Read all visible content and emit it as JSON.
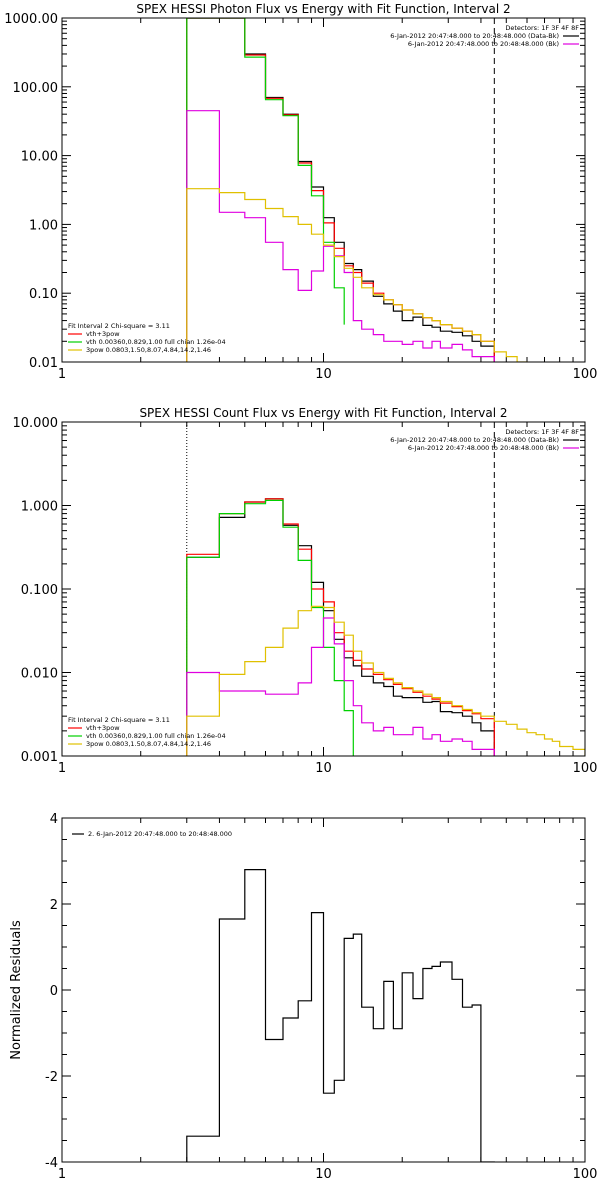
{
  "chart_data": [
    {
      "type": "line",
      "step": true,
      "x_scale": "log",
      "y_scale": "log",
      "title": "SPEX HESSI Photon Flux vs Energy with Fit Function, Interval 2",
      "xlabel": "",
      "ylabel": "",
      "xlim": [
        1,
        100
      ],
      "ylim": [
        0.01,
        1000
      ],
      "x_ticks": [
        1,
        10,
        100
      ],
      "x_tick_labels": [
        "1",
        "10",
        "100"
      ],
      "y_ticks": [
        0.01,
        0.1,
        1,
        10,
        100,
        1000
      ],
      "y_tick_labels": [
        "0.01",
        "0.10",
        "1.00",
        "10.00",
        "100.00",
        "1000.00"
      ],
      "vlines": [
        {
          "x": 3.0,
          "style": "dotted",
          "color": "#ffa500"
        },
        {
          "x": 45,
          "style": "dashed",
          "color": "#000000"
        }
      ],
      "legend_top_right": [
        {
          "text": "Detectors: 1F 3F 4F 8F",
          "line": false,
          "color": "#000000"
        },
        {
          "text": "6-Jan-2012 20:47:48.000 to 20:48:48.000 (Data-Bk)",
          "line": true,
          "color": "#000000"
        },
        {
          "text": "6-Jan-2012 20:47:48.000 to 20:48:48.000 (Bk)",
          "line": true,
          "color": "#e000e0"
        }
      ],
      "legend_bottom_left": [
        {
          "text": "Fit Interval 2   Chi-square = 3.11",
          "line": false,
          "color": "#000000"
        },
        {
          "text": "vth+3pow",
          "line": true,
          "color": "#ff0000"
        },
        {
          "text": "vth 0.00360,0.829,1.00  full chian 1.26e-04",
          "line": true,
          "color": "#00d000"
        },
        {
          "text": "3pow 0.0803,1.50,8.07,4.84,14.2,1.46",
          "line": true,
          "color": "#e0c000"
        }
      ],
      "series": [
        {
          "color": "#000000",
          "edges": [
            3.0,
            4.0,
            5.0,
            6.0,
            7.0,
            8.0,
            9.0,
            10.0,
            11.0,
            12.0,
            13.0,
            14.0,
            15.5,
            17.0,
            18.5,
            20.0,
            22.0,
            24.0,
            26.0,
            28.0,
            31.0,
            34.0,
            37.0,
            40.0,
            45.0
          ],
          "values": [
            1000,
            1000,
            300,
            70,
            40,
            8.2,
            3.5,
            1.25,
            0.55,
            0.27,
            0.22,
            0.15,
            0.09,
            0.07,
            0.055,
            0.04,
            0.045,
            0.034,
            0.032,
            0.028,
            0.027,
            0.024,
            0.02,
            0.017
          ]
        },
        {
          "color": "#ff0000",
          "edges": [
            3.0,
            4.0,
            5.0,
            6.0,
            7.0,
            8.0,
            9.0,
            10.0,
            11.0,
            12.0,
            13.0,
            14.0,
            15.5,
            17.0,
            18.5,
            20.0,
            22.0,
            24.0,
            26.0,
            28.0,
            31.0,
            34.0,
            37.0,
            40.0,
            45.0
          ],
          "values": [
            1000,
            1000,
            290,
            68,
            39,
            7.8,
            3.1,
            1.05,
            0.45,
            0.25,
            0.2,
            0.14,
            0.1,
            0.08,
            0.068,
            0.057,
            0.05,
            0.044,
            0.04,
            0.035,
            0.031,
            0.028,
            0.025,
            0.02
          ]
        },
        {
          "color": "#00d000",
          "edges": [
            3.0,
            4.0,
            5.0,
            6.0,
            7.0,
            8.0,
            9.0,
            10.0,
            11.0,
            12.0
          ],
          "values": [
            1000,
            1000,
            270,
            65,
            38,
            7.2,
            2.6,
            0.55,
            0.12,
            0.035
          ]
        },
        {
          "color": "#e000e0",
          "edges": [
            3.0,
            4.0,
            5.0,
            6.0,
            7.0,
            8.0,
            9.0,
            10.0,
            11.0,
            12.0,
            13.0,
            14.0,
            15.5,
            17.0,
            18.5,
            20.0,
            22.0,
            24.0,
            26.0,
            28.0,
            31.0,
            34.0,
            37.0,
            40.0,
            45.0
          ],
          "values": [
            45,
            1.5,
            1.25,
            0.55,
            0.22,
            0.11,
            0.21,
            0.48,
            0.35,
            0.2,
            0.04,
            0.03,
            0.025,
            0.02,
            0.02,
            0.018,
            0.02,
            0.016,
            0.02,
            0.016,
            0.018,
            0.015,
            0.012,
            0.012
          ]
        },
        {
          "color": "#e0c000",
          "edges": [
            3.0,
            4.0,
            5.0,
            6.0,
            7.0,
            8.0,
            9.0,
            10.0,
            11.0,
            12.0,
            13.0,
            14.0,
            15.5,
            17.0,
            18.5,
            20.0,
            22.0,
            24.0,
            26.0,
            28.0,
            31.0,
            34.0,
            37.0,
            40.0,
            45.0,
            50.0,
            55.0,
            60.0
          ],
          "values": [
            3.3,
            2.9,
            2.3,
            1.7,
            1.3,
            1.0,
            0.72,
            0.5,
            0.34,
            0.23,
            0.17,
            0.12,
            0.095,
            0.08,
            0.068,
            0.057,
            0.05,
            0.044,
            0.04,
            0.035,
            0.031,
            0.028,
            0.025,
            0.02,
            0.014,
            0.012,
            0.01
          ]
        }
      ]
    },
    {
      "type": "line",
      "step": true,
      "x_scale": "log",
      "y_scale": "log",
      "title": "SPEX HESSI Count Flux vs Energy with Fit Function, Interval 2",
      "xlabel": "",
      "ylabel": "",
      "xlim": [
        1,
        100
      ],
      "ylim": [
        0.001,
        10
      ],
      "x_ticks": [
        1,
        10,
        100
      ],
      "x_tick_labels": [
        "1",
        "10",
        "100"
      ],
      "y_ticks": [
        0.001,
        0.01,
        0.1,
        1,
        10
      ],
      "y_tick_labels": [
        "0.001",
        "0.010",
        "0.100",
        "1.000",
        "10.000"
      ],
      "vlines": [
        {
          "x": 3.0,
          "style": "dotted",
          "color": "#000000"
        },
        {
          "x": 45,
          "style": "dashed",
          "color": "#000000"
        }
      ],
      "legend_top_right": [
        {
          "text": "Detectors: 1F 3F 4F 8F",
          "line": false,
          "color": "#000000"
        },
        {
          "text": "6-Jan-2012 20:47:48.000 to 20:48:48.000 (Data-Bk)",
          "line": true,
          "color": "#000000"
        },
        {
          "text": "6-Jan-2012 20:47:48.000 to 20:48:48.000 (Bk)",
          "line": true,
          "color": "#e000e0"
        }
      ],
      "legend_bottom_left": [
        {
          "text": "Fit Interval 2   Chi-square = 3.11",
          "line": false,
          "color": "#000000"
        },
        {
          "text": "vth+3pow",
          "line": true,
          "color": "#ff0000"
        },
        {
          "text": "vth 0.00360,0.829,1.00  full chian 1.26e-04",
          "line": true,
          "color": "#00d000"
        },
        {
          "text": "3pow 0.0803,1.50,8.07,4.84,14.2,1.46",
          "line": true,
          "color": "#e0c000"
        }
      ],
      "series": [
        {
          "color": "#000000",
          "edges": [
            3.0,
            4.0,
            5.0,
            6.0,
            7.0,
            8.0,
            9.0,
            10.0,
            11.0,
            12.0,
            13.0,
            14.0,
            15.5,
            17.0,
            18.5,
            20.0,
            22.0,
            24.0,
            26.0,
            28.0,
            31.0,
            34.0,
            37.0,
            40.0,
            45.0
          ],
          "values": [
            0.24,
            0.72,
            1.1,
            1.2,
            0.58,
            0.33,
            0.12,
            0.055,
            0.025,
            0.015,
            0.012,
            0.009,
            0.0075,
            0.0068,
            0.0052,
            0.005,
            0.005,
            0.0044,
            0.0045,
            0.0034,
            0.0033,
            0.003,
            0.0025,
            0.002
          ]
        },
        {
          "color": "#ff0000",
          "edges": [
            3.0,
            4.0,
            5.0,
            6.0,
            7.0,
            8.0,
            9.0,
            10.0,
            11.0,
            12.0,
            13.0,
            14.0,
            15.5,
            17.0,
            18.5,
            20.0,
            22.0,
            24.0,
            26.0,
            28.0,
            31.0,
            34.0,
            37.0,
            40.0,
            45.0
          ],
          "values": [
            0.26,
            0.8,
            1.1,
            1.2,
            0.6,
            0.3,
            0.1,
            0.07,
            0.03,
            0.018,
            0.014,
            0.011,
            0.0095,
            0.0082,
            0.0072,
            0.0064,
            0.0058,
            0.0052,
            0.0048,
            0.0043,
            0.0039,
            0.0035,
            0.0032,
            0.0028
          ]
        },
        {
          "color": "#00d000",
          "edges": [
            3.0,
            4.0,
            5.0,
            6.0,
            7.0,
            8.0,
            9.0,
            10.0,
            11.0,
            12.0,
            13.0
          ],
          "values": [
            0.24,
            0.8,
            1.05,
            1.15,
            0.55,
            0.22,
            0.06,
            0.02,
            0.008,
            0.0035,
            0.001
          ]
        },
        {
          "color": "#e000e0",
          "edges": [
            3.0,
            4.0,
            5.0,
            6.0,
            7.0,
            8.0,
            9.0,
            10.0,
            11.0,
            12.0,
            13.0,
            14.0,
            15.5,
            17.0,
            18.5,
            20.0,
            22.0,
            24.0,
            26.0,
            28.0,
            31.0,
            34.0,
            37.0,
            40.0,
            45.0
          ],
          "values": [
            0.01,
            0.006,
            0.006,
            0.0055,
            0.0055,
            0.0075,
            0.02,
            0.045,
            0.022,
            0.008,
            0.004,
            0.0025,
            0.002,
            0.0022,
            0.0018,
            0.0018,
            0.0022,
            0.0016,
            0.0018,
            0.0015,
            0.0016,
            0.0015,
            0.0012,
            0.0012
          ]
        },
        {
          "color": "#e0c000",
          "edges": [
            3.0,
            4.0,
            5.0,
            6.0,
            7.0,
            8.0,
            9.0,
            10.0,
            11.0,
            12.0,
            13.0,
            14.0,
            15.5,
            17.0,
            18.5,
            20.0,
            22.0,
            24.0,
            26.0,
            28.0,
            31.0,
            34.0,
            37.0,
            40.0,
            45.0,
            50.0,
            55.0,
            60.0,
            65.0,
            70.0,
            75.0,
            80.0,
            90.0,
            100.0
          ],
          "values": [
            0.003,
            0.0095,
            0.0135,
            0.02,
            0.034,
            0.055,
            0.062,
            0.06,
            0.04,
            0.028,
            0.018,
            0.013,
            0.01,
            0.0085,
            0.0075,
            0.0066,
            0.006,
            0.0055,
            0.005,
            0.0045,
            0.004,
            0.0036,
            0.0033,
            0.003,
            0.0026,
            0.0024,
            0.0021,
            0.0019,
            0.0018,
            0.0016,
            0.0015,
            0.0013,
            0.0012
          ]
        }
      ]
    },
    {
      "type": "line",
      "step": true,
      "x_scale": "log",
      "y_scale": "linear",
      "title": "",
      "xlabel": "",
      "ylabel": "Normalized Residuals",
      "xlim": [
        1,
        100
      ],
      "ylim": [
        -4,
        4
      ],
      "x_ticks": [
        1,
        10,
        100
      ],
      "x_tick_labels": [
        "1",
        "10",
        "100"
      ],
      "y_ticks": [
        -4,
        -2,
        0,
        2,
        4
      ],
      "y_tick_labels": [
        "-4",
        "-2",
        "0",
        "2",
        "4"
      ],
      "legend_top_left": [
        {
          "text": "2.  6-Jan-2012 20:47:48.000 to 20:48:48.000",
          "line": true,
          "color": "#000000"
        }
      ],
      "series": [
        {
          "color": "#000000",
          "edges": [
            3.0,
            4.0,
            5.0,
            6.0,
            7.0,
            8.0,
            9.0,
            10.0,
            11.0,
            12.0,
            13.0,
            14.0,
            15.5,
            17.0,
            18.5,
            20.0,
            22.0,
            24.0,
            26.0,
            28.0,
            31.0,
            34.0,
            37.0,
            40.0,
            45.0
          ],
          "values": [
            -3.4,
            1.65,
            2.8,
            -1.15,
            -0.65,
            -0.25,
            1.8,
            -2.4,
            -2.1,
            1.2,
            1.3,
            -0.4,
            -0.9,
            0.2,
            -0.9,
            0.4,
            -0.2,
            0.5,
            0.55,
            0.65,
            0.25,
            -0.4,
            -0.35,
            -4.0
          ]
        }
      ]
    }
  ]
}
